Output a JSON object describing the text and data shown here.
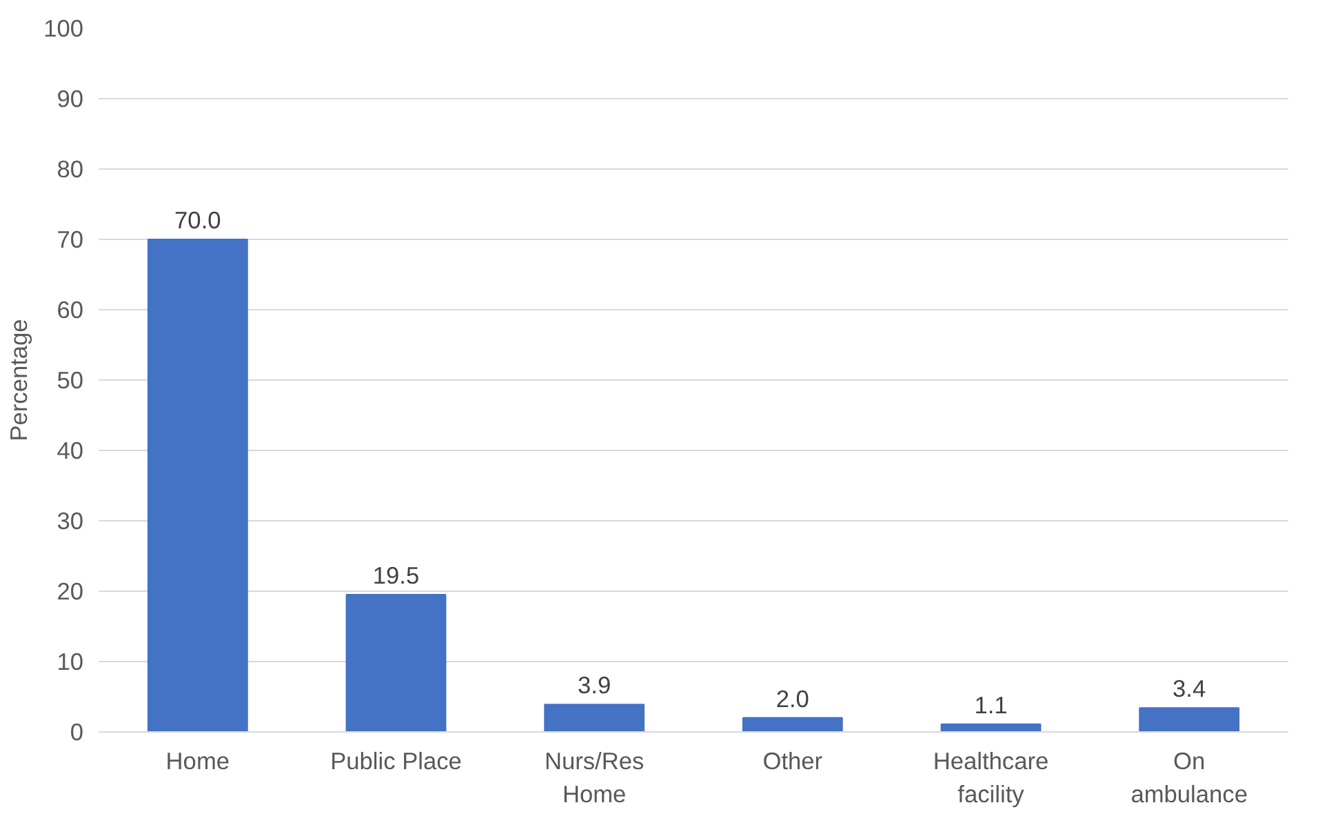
{
  "chart_data": {
    "type": "bar",
    "ylabel": "Percentage",
    "categories": [
      "Home",
      "Public Place",
      "Nurs/Res\nHome",
      "Other",
      "Healthcare\nfacility",
      "On\nambulance"
    ],
    "values": [
      70.0,
      19.5,
      3.9,
      2.0,
      1.1,
      3.4
    ],
    "color": "#4472c4",
    "ylim": [
      0,
      100
    ],
    "yticks": [
      0,
      10,
      20,
      30,
      40,
      50,
      60,
      70,
      80,
      90,
      100
    ],
    "value_labels": [
      "70.0",
      "19.5",
      "3.9",
      "2.0",
      "1.1",
      "3.4"
    ],
    "grid": "y"
  }
}
